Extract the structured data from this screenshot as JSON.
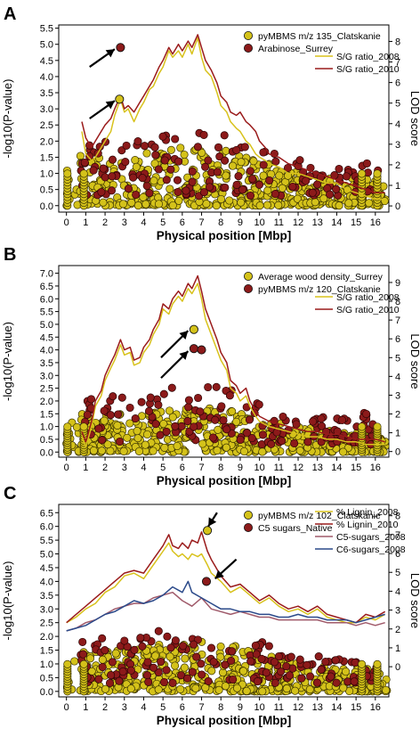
{
  "colors": {
    "yellow_marker": "#d4c21a",
    "red_marker": "#8c1a1a",
    "line_yellow": "#d8c21c",
    "line_red": "#9a1b1b",
    "line_mauve": "#a05a6a",
    "line_blue": "#2b4a8a",
    "axis": "#000000"
  },
  "chart_data": [
    {
      "panel_label": "A",
      "type": "scatter",
      "xlabel": "Physical position [Mbp]",
      "ylabel": "-log10(P-value)",
      "ylabel_right": "LOD score",
      "xlim": [
        -0.4,
        16.7
      ],
      "ylim": [
        -0.2,
        5.6
      ],
      "ylim_right": [
        -0.3,
        8.8
      ],
      "x_ticks": [
        "0",
        "1",
        "2",
        "3",
        "4",
        "5",
        "6",
        "7",
        "8",
        "9",
        "10",
        "11",
        "12",
        "13",
        "14",
        "15",
        "16"
      ],
      "y_ticks": [
        "0.0",
        "0.5",
        "1.0",
        "1.5",
        "2.0",
        "2.5",
        "3.0",
        "3.5",
        "4.0",
        "4.5",
        "5.0",
        "5.5"
      ],
      "y_ticks_right": [
        "0",
        "1",
        "2",
        "3",
        "4",
        "5",
        "6",
        "7",
        "8"
      ],
      "legend_points": [
        {
          "name": "pyMBMS m/z 135_Clatskanie",
          "color": "#d4c21a"
        },
        {
          "name": "Arabinose_Surrey",
          "color": "#8c1a1a"
        }
      ],
      "legend_lines": [
        {
          "name": "S/G ratio_2008",
          "color": "#d8c21c"
        },
        {
          "name": "S/G ratio_2010",
          "color": "#9a1b1b"
        }
      ],
      "series": [
        {
          "name": "S/G ratio_2008",
          "color": "#d8c21c",
          "x": [
            0.8,
            1.0,
            1.3,
            1.5,
            1.8,
            2.0,
            2.3,
            2.5,
            2.8,
            3.0,
            3.2,
            3.5,
            3.8,
            4.0,
            4.3,
            4.5,
            4.8,
            5.0,
            5.3,
            5.5,
            5.8,
            6.0,
            6.3,
            6.5,
            6.8,
            7.0,
            7.2,
            7.5,
            7.8,
            8.0,
            8.3,
            8.5,
            8.8,
            9.0,
            9.3,
            9.5,
            9.8,
            10.0,
            10.3,
            10.5,
            11.0,
            11.5,
            12.0,
            12.5,
            13.0,
            13.5,
            14.0,
            14.5,
            15.0,
            15.5,
            16.0,
            16.5
          ],
          "y": [
            2.3,
            1.6,
            1.4,
            1.5,
            1.8,
            2.0,
            2.3,
            2.8,
            3.3,
            2.9,
            3.0,
            2.6,
            3.0,
            3.2,
            3.6,
            3.7,
            4.1,
            4.3,
            4.8,
            4.6,
            4.8,
            4.6,
            5.0,
            4.7,
            5.2,
            4.6,
            4.2,
            4.0,
            3.5,
            3.1,
            2.9,
            2.6,
            2.4,
            2.3,
            2.0,
            1.9,
            1.6,
            1.5,
            1.4,
            1.3,
            1.2,
            1.0,
            1.0,
            0.9,
            0.8,
            0.7,
            0.7,
            0.5,
            0.4,
            0.3,
            0.2,
            0.2
          ]
        },
        {
          "name": "S/G ratio_2010",
          "color": "#9a1b1b",
          "x": [
            0.8,
            1.0,
            1.3,
            1.5,
            1.8,
            2.0,
            2.3,
            2.5,
            2.8,
            3.0,
            3.2,
            3.5,
            3.8,
            4.0,
            4.3,
            4.5,
            4.8,
            5.0,
            5.3,
            5.5,
            5.8,
            6.0,
            6.3,
            6.5,
            6.8,
            7.0,
            7.2,
            7.5,
            7.8,
            8.0,
            8.3,
            8.5,
            8.8,
            9.0,
            9.3,
            9.5,
            9.8,
            10.0,
            10.3,
            10.5,
            11.0,
            11.5,
            12.0,
            12.5,
            13.0,
            13.5,
            14.0,
            14.5,
            15.0,
            15.5,
            16.0,
            16.5
          ],
          "y": [
            2.6,
            2.1,
            1.8,
            2.0,
            2.3,
            2.5,
            2.7,
            3.0,
            3.4,
            3.0,
            3.1,
            2.9,
            3.2,
            3.4,
            3.7,
            3.9,
            4.3,
            4.5,
            4.9,
            4.7,
            5.0,
            4.8,
            5.1,
            4.9,
            5.3,
            4.9,
            4.5,
            4.2,
            3.8,
            3.4,
            3.2,
            2.9,
            2.8,
            2.9,
            2.6,
            2.5,
            2.3,
            2.0,
            1.8,
            1.6,
            1.5,
            1.3,
            1.2,
            1.1,
            1.0,
            0.9,
            0.8,
            0.7,
            0.6,
            0.5,
            0.4,
            0.4
          ]
        }
      ],
      "highlight_points": [
        {
          "x": 2.8,
          "y": 4.9,
          "color": "#8c1a1a"
        },
        {
          "x": 2.75,
          "y": 3.3,
          "color": "#d4c21a"
        }
      ],
      "arrows": [
        {
          "from": [
            1.2,
            4.3
          ],
          "to": [
            2.5,
            4.85
          ]
        },
        {
          "from": [
            1.2,
            2.7
          ],
          "to": [
            2.5,
            3.25
          ]
        }
      ]
    },
    {
      "panel_label": "B",
      "type": "scatter",
      "xlabel": "Physical position [Mbp]",
      "ylabel": "-log10(P-value)",
      "ylabel_right": "LOD score",
      "xlim": [
        -0.4,
        16.7
      ],
      "ylim": [
        -0.2,
        7.3
      ],
      "ylim_right": [
        -0.3,
        9.9
      ],
      "x_ticks": [
        "0",
        "1",
        "2",
        "3",
        "4",
        "5",
        "6",
        "7",
        "8",
        "9",
        "10",
        "11",
        "12",
        "13",
        "14",
        "15",
        "16"
      ],
      "y_ticks": [
        "0.0",
        "0.5",
        "1.0",
        "1.5",
        "2.0",
        "2.5",
        "3.0",
        "3.5",
        "4.0",
        "4.5",
        "5.0",
        "5.5",
        "6.0",
        "6.5",
        "7.0"
      ],
      "y_ticks_right": [
        "0",
        "1",
        "2",
        "3",
        "4",
        "5",
        "6",
        "7",
        "8",
        "9"
      ],
      "legend_points": [
        {
          "name": "Average wood density_Surrey",
          "color": "#d4c21a"
        },
        {
          "name": "pyMBMS m/z 120_Clatskanie",
          "color": "#8c1a1a"
        }
      ],
      "legend_lines": [
        {
          "name": "S/G ratio_2008",
          "color": "#d8c21c"
        },
        {
          "name": "S/G ratio_2010",
          "color": "#9a1b1b"
        }
      ],
      "series": [
        {
          "name": "S/G ratio_2008",
          "color": "#d8c21c",
          "x": [
            0.8,
            1.0,
            1.3,
            1.5,
            1.8,
            2.0,
            2.3,
            2.5,
            2.8,
            3.0,
            3.3,
            3.5,
            3.8,
            4.0,
            4.3,
            4.5,
            4.8,
            5.0,
            5.3,
            5.5,
            5.8,
            6.0,
            6.3,
            6.5,
            6.8,
            7.0,
            7.2,
            7.5,
            7.8,
            8.0,
            8.3,
            8.5,
            8.8,
            9.0,
            9.3,
            9.5,
            9.8,
            10.0,
            10.5,
            11.0,
            11.5,
            12.0,
            12.5,
            13.0,
            13.5,
            14.0,
            14.5,
            15.0,
            15.5,
            16.0,
            16.5
          ],
          "y": [
            0.6,
            0.2,
            1.0,
            1.8,
            2.2,
            2.8,
            3.3,
            3.6,
            4.2,
            3.8,
            3.9,
            3.4,
            3.5,
            3.9,
            4.2,
            4.6,
            5.0,
            5.6,
            5.4,
            5.8,
            6.1,
            5.9,
            6.4,
            6.2,
            6.6,
            6.0,
            5.2,
            4.6,
            4.0,
            3.6,
            3.2,
            2.5,
            2.3,
            2.0,
            2.2,
            1.8,
            1.4,
            1.2,
            1.0,
            0.9,
            0.8,
            0.7,
            0.6,
            0.6,
            0.5,
            0.5,
            0.4,
            0.4,
            0.3,
            0.3,
            0.3
          ]
        },
        {
          "name": "S/G ratio_2010",
          "color": "#9a1b1b",
          "x": [
            0.8,
            1.0,
            1.3,
            1.5,
            1.8,
            2.0,
            2.3,
            2.5,
            2.8,
            3.0,
            3.3,
            3.5,
            3.8,
            4.0,
            4.3,
            4.5,
            4.8,
            5.0,
            5.3,
            5.5,
            5.8,
            6.0,
            6.3,
            6.5,
            6.8,
            7.0,
            7.2,
            7.5,
            7.8,
            8.0,
            8.3,
            8.5,
            8.8,
            9.0,
            9.3,
            9.5,
            9.8,
            10.0,
            10.5,
            11.0,
            11.5,
            12.0,
            12.5,
            13.0,
            13.5,
            14.0,
            14.5,
            15.0,
            15.5,
            16.0,
            16.5
          ],
          "y": [
            0.8,
            0.4,
            1.2,
            2.0,
            2.4,
            3.0,
            3.5,
            3.8,
            4.4,
            4.0,
            4.1,
            3.6,
            3.7,
            4.1,
            4.4,
            4.8,
            5.2,
            5.8,
            5.6,
            6.0,
            6.3,
            6.1,
            6.6,
            6.4,
            6.9,
            6.3,
            5.6,
            5.0,
            4.4,
            3.9,
            3.5,
            2.8,
            2.6,
            2.3,
            2.5,
            2.0,
            1.6,
            1.4,
            1.2,
            1.1,
            1.0,
            0.9,
            0.8,
            0.8,
            0.7,
            0.7,
            0.6,
            0.5,
            0.5,
            0.5,
            0.4
          ]
        }
      ],
      "highlight_points": [
        {
          "x": 6.6,
          "y": 4.8,
          "color": "#d4c21a"
        },
        {
          "x": 6.6,
          "y": 4.05,
          "color": "#8c1a1a"
        },
        {
          "x": 7.0,
          "y": 4.0,
          "color": "#8c1a1a"
        }
      ],
      "arrows": [
        {
          "from": [
            4.9,
            3.7
          ],
          "to": [
            6.3,
            4.75
          ]
        },
        {
          "from": [
            4.9,
            2.9
          ],
          "to": [
            6.3,
            3.95
          ]
        }
      ]
    },
    {
      "panel_label": "C",
      "type": "scatter",
      "xlabel": "Physical position [Mbp]",
      "ylabel": "-log10(P-value)",
      "ylabel_right": "LOD score",
      "xlim": [
        -0.4,
        16.7
      ],
      "ylim": [
        -0.2,
        6.8
      ],
      "ylim_right": [
        -1.6,
        8.6
      ],
      "x_ticks": [
        "0",
        "1",
        "2",
        "3",
        "4",
        "5",
        "6",
        "7",
        "8",
        "9",
        "10",
        "11",
        "12",
        "13",
        "14",
        "15",
        "16"
      ],
      "y_ticks": [
        "0.0",
        "0.5",
        "1.0",
        "1.5",
        "2.0",
        "2.5",
        "3.0",
        "3.5",
        "4.0",
        "4.5",
        "5.0",
        "5.5",
        "6.0",
        "6.5"
      ],
      "y_ticks_right": [
        "0",
        "1",
        "2",
        "3",
        "4",
        "5",
        "6",
        "7",
        "8"
      ],
      "legend_points": [
        {
          "name": "pyMBMS m/z 102_Clatskanie",
          "color": "#d4c21a"
        },
        {
          "name": "C5 sugars_Native",
          "color": "#8c1a1a"
        }
      ],
      "legend_lines": [
        {
          "name": "% Lignin_2008",
          "color": "#d8c21c"
        },
        {
          "name": "% Lignin_2010",
          "color": "#9a1b1b"
        },
        {
          "name": "C5-sugars_2008",
          "color": "#a05a6a"
        },
        {
          "name": "C6-sugars_2008",
          "color": "#2b4a8a"
        }
      ],
      "series": [
        {
          "name": "% Lignin_2008",
          "color": "#d8c21c",
          "x": [
            0,
            0.5,
            1.0,
            1.5,
            2.0,
            2.5,
            3.0,
            3.5,
            4.0,
            4.5,
            5.0,
            5.3,
            5.5,
            5.8,
            6.0,
            6.3,
            6.5,
            6.8,
            7.0,
            7.3,
            7.5,
            8.0,
            8.5,
            9.0,
            9.5,
            10.0,
            10.5,
            11.0,
            11.5,
            12.0,
            12.5,
            13.0,
            13.5,
            14.0,
            14.5,
            15.0,
            15.5,
            16.0,
            16.5
          ],
          "y": [
            2.5,
            2.7,
            3.0,
            3.2,
            3.6,
            3.8,
            4.2,
            4.3,
            4.1,
            4.6,
            5.1,
            5.4,
            5.1,
            4.9,
            5.0,
            4.8,
            5.0,
            4.9,
            5.0,
            4.6,
            4.3,
            4.0,
            3.6,
            3.8,
            3.5,
            3.2,
            3.4,
            3.1,
            2.9,
            3.0,
            2.8,
            3.0,
            2.7,
            2.6,
            2.5,
            2.5,
            2.7,
            2.6,
            2.8
          ]
        },
        {
          "name": "% Lignin_2010",
          "color": "#9a1b1b",
          "x": [
            0,
            0.5,
            1.0,
            1.5,
            2.0,
            2.5,
            3.0,
            3.5,
            4.0,
            4.5,
            5.0,
            5.3,
            5.5,
            5.8,
            6.0,
            6.3,
            6.5,
            6.8,
            7.0,
            7.3,
            7.5,
            8.0,
            8.5,
            9.0,
            9.5,
            10.0,
            10.5,
            11.0,
            11.5,
            12.0,
            12.5,
            13.0,
            13.5,
            14.0,
            14.5,
            15.0,
            15.5,
            16.0,
            16.5
          ],
          "y": [
            2.5,
            2.8,
            3.1,
            3.4,
            3.7,
            4.0,
            4.3,
            4.4,
            4.3,
            4.8,
            5.3,
            5.7,
            5.3,
            5.2,
            5.4,
            5.2,
            5.5,
            5.4,
            5.8,
            5.1,
            4.8,
            4.2,
            3.8,
            3.9,
            3.6,
            3.3,
            3.5,
            3.2,
            3.0,
            3.1,
            2.9,
            3.1,
            2.8,
            2.7,
            2.6,
            2.5,
            2.8,
            2.7,
            2.9
          ]
        },
        {
          "name": "C5-sugars_2008",
          "color": "#a05a6a",
          "x": [
            0,
            0.5,
            1.0,
            1.5,
            2.0,
            2.5,
            3.0,
            3.5,
            4.0,
            4.5,
            5.0,
            5.5,
            6.0,
            6.5,
            7.0,
            7.5,
            8.0,
            8.5,
            9.0,
            9.5,
            10.0,
            10.5,
            11.0,
            11.5,
            12.0,
            12.5,
            13.0,
            13.5,
            14.0,
            14.5,
            15.0,
            15.5,
            16.0,
            16.5
          ],
          "y": [
            2.2,
            2.3,
            2.5,
            2.6,
            2.8,
            3.0,
            3.1,
            3.2,
            3.2,
            3.4,
            3.5,
            3.6,
            3.3,
            3.1,
            3.4,
            3.0,
            2.9,
            2.8,
            2.9,
            2.8,
            2.7,
            2.7,
            2.6,
            2.6,
            2.6,
            2.6,
            2.6,
            2.5,
            2.5,
            2.5,
            2.4,
            2.5,
            2.4,
            2.5
          ]
        },
        {
          "name": "C6-sugars_2008",
          "color": "#2b4a8a",
          "x": [
            0,
            0.5,
            1.0,
            1.5,
            2.0,
            2.5,
            3.0,
            3.5,
            4.0,
            4.5,
            5.0,
            5.5,
            6.0,
            6.3,
            6.5,
            7.0,
            7.5,
            8.0,
            8.5,
            9.0,
            9.5,
            10.0,
            10.5,
            11.0,
            11.5,
            12.0,
            12.5,
            13.0,
            13.5,
            14.0,
            14.5,
            15.0,
            15.5,
            16.0,
            16.5
          ],
          "y": [
            2.2,
            2.3,
            2.4,
            2.6,
            2.8,
            2.9,
            3.1,
            3.3,
            3.2,
            3.3,
            3.5,
            3.8,
            3.6,
            4.0,
            3.6,
            3.4,
            3.2,
            3.0,
            3.0,
            2.9,
            2.9,
            2.8,
            2.8,
            2.7,
            2.7,
            2.8,
            2.7,
            2.7,
            2.6,
            2.6,
            2.6,
            2.5,
            2.6,
            2.7,
            2.8
          ]
        }
      ],
      "highlight_points": [
        {
          "x": 7.3,
          "y": 5.85,
          "color": "#d4c21a"
        },
        {
          "x": 7.25,
          "y": 4.0,
          "color": "#8c1a1a"
        }
      ],
      "arrows": [
        {
          "from": [
            7.8,
            6.5
          ],
          "to": [
            7.35,
            6.0
          ]
        },
        {
          "from": [
            8.8,
            4.8
          ],
          "to": [
            7.7,
            4.1
          ]
        }
      ]
    }
  ]
}
